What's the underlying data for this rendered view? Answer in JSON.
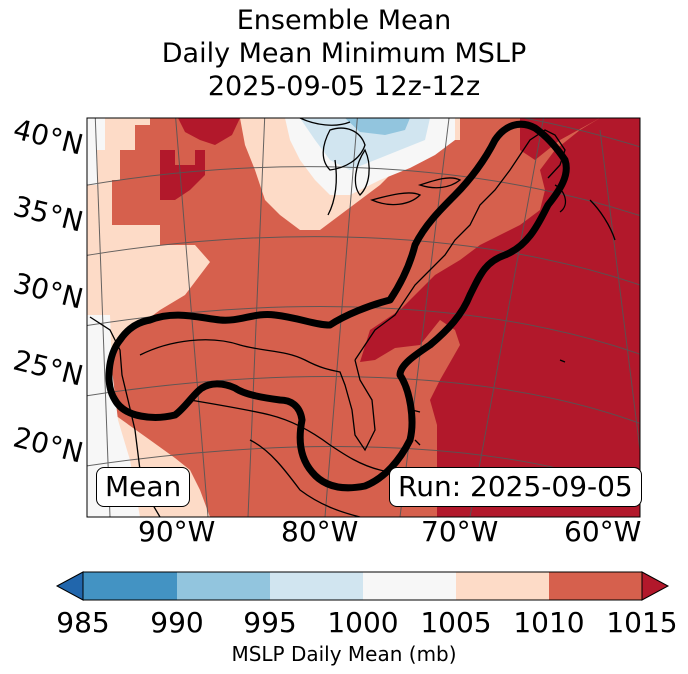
{
  "title": {
    "line1": "Ensemble Mean",
    "line2": "Daily Mean Minimum MSLP",
    "line3": "2025-09-05 12z-12z"
  },
  "map": {
    "lat_labels": [
      "40°N",
      "35°N",
      "30°N",
      "25°N",
      "20°N"
    ],
    "lon_labels": [
      "90°W",
      "80°W",
      "70°W",
      "60°W"
    ],
    "mean_box": "Mean",
    "run_box": "Run: 2025-09-05"
  },
  "colorbar": {
    "ticks": [
      "985",
      "990",
      "995",
      "1000",
      "1005",
      "1010",
      "1015"
    ],
    "label": "MSLP Daily Mean (mb)",
    "colors": {
      "under": "#2166ac",
      "985_990": "#4393c3",
      "990_995": "#92c5de",
      "995_1000": "#d1e5f0",
      "1000_1005": "#f7f7f7",
      "1005_1010": "#fddbc7",
      "1010_1015": "#d6604d",
      "over": "#b2182b"
    }
  }
}
